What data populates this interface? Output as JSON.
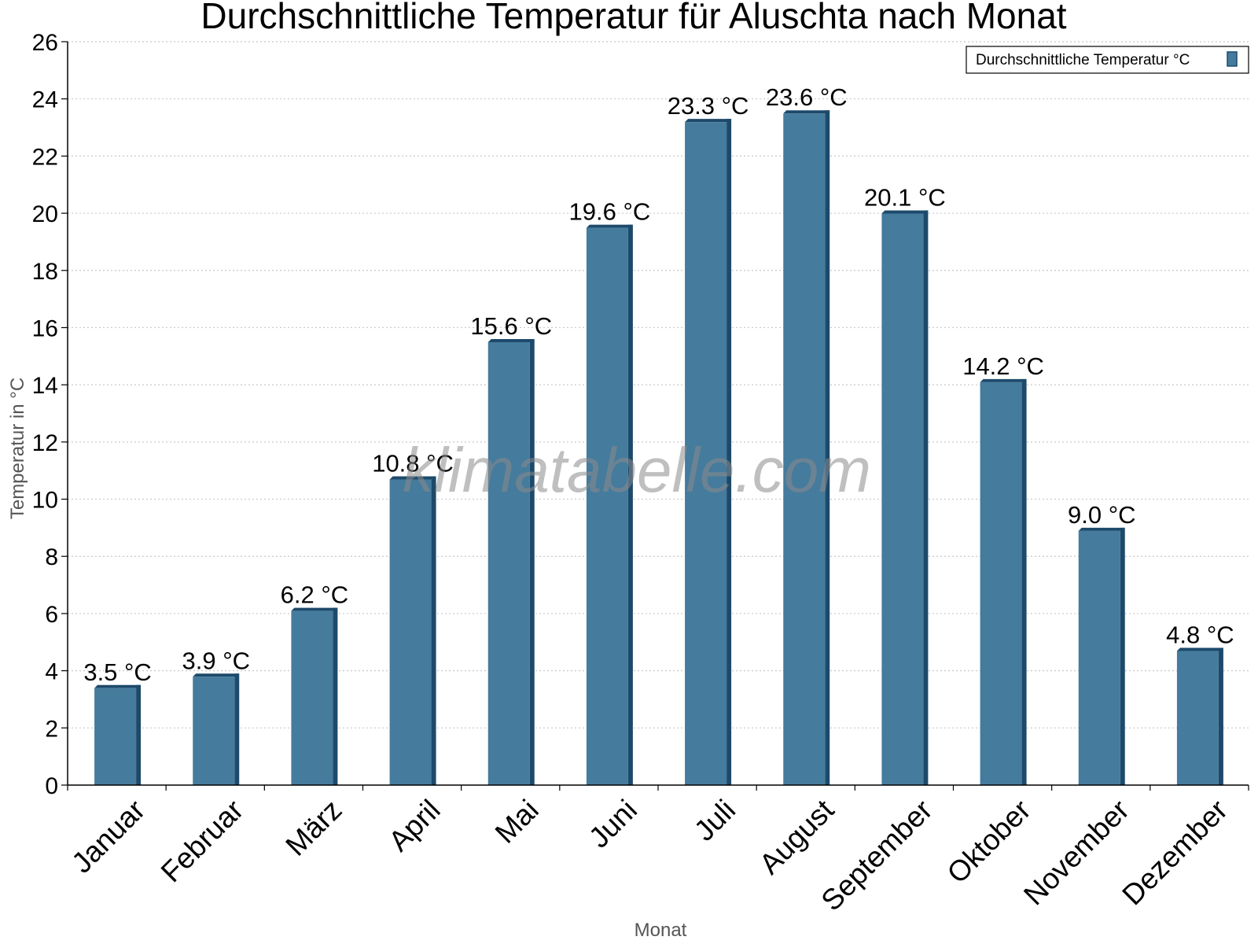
{
  "chart_data": {
    "type": "bar",
    "title": "Durchschnittliche Temperatur für Aluschta nach Monat",
    "xlabel": "Monat",
    "ylabel": "Temperatur in °C",
    "categories": [
      "Januar",
      "Februar",
      "März",
      "April",
      "Mai",
      "Juni",
      "Juli",
      "August",
      "September",
      "Oktober",
      "November",
      "Dezember"
    ],
    "series": [
      {
        "name": "Durchschnittliche Temperatur °C",
        "values": [
          3.5,
          3.9,
          6.2,
          10.8,
          15.6,
          19.6,
          23.3,
          23.6,
          20.1,
          14.2,
          9.0,
          4.8
        ],
        "labels": [
          "3.5 °C",
          "3.9 °C",
          "6.2 °C",
          "10.8 °C",
          "15.6 °C",
          "19.6 °C",
          "23.3 °C",
          "23.6 °C",
          "20.1 °C",
          "14.2 °C",
          "9.0 °C",
          "4.8 °C"
        ],
        "color": "#457b9d",
        "edge_color": "#1d4a6b"
      }
    ],
    "ylim": [
      0,
      26
    ],
    "yticks": [
      "0",
      "2",
      "4",
      "6",
      "8",
      "10",
      "12",
      "14",
      "16",
      "18",
      "20",
      "22",
      "24",
      "26"
    ],
    "grid": true,
    "legend_position": "top-right",
    "watermark": "klimatabelle.com"
  }
}
